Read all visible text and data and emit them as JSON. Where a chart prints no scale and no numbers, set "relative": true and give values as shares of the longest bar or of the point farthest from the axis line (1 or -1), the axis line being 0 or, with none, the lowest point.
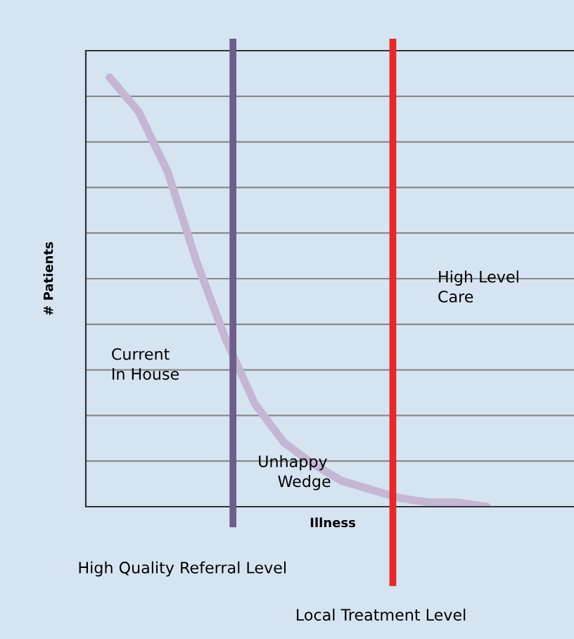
{
  "chart_data": {
    "type": "line",
    "relative": true,
    "xlabel": "Illness",
    "ylabel": "# Patients",
    "categories": [
      null,
      null,
      null,
      null,
      null,
      null,
      null,
      null,
      null,
      null,
      null,
      null,
      null,
      null
    ],
    "series": [
      {
        "color": "#c5b6d3",
        "values": [
          1,
          0.92,
          0.78,
          0.57,
          0.39,
          0.24,
          0.15,
          0.1,
          0.06,
          0.04,
          0.02,
          0.01,
          0.01,
          0.0
        ]
      }
    ],
    "ref_lines": [
      {
        "axis": "x",
        "label": "High Quality Referral Level",
        "color": "#6e5e8c"
      },
      {
        "axis": "x",
        "label": "Local Treatment Level",
        "color": "#e5292b"
      }
    ],
    "annotations": [
      "Current\nIn House",
      "Unhappy\n    Wedge",
      "High Level\nCare"
    ],
    "grid": "y",
    "marker": "none",
    "line_style": "solid",
    "legend": false
  }
}
